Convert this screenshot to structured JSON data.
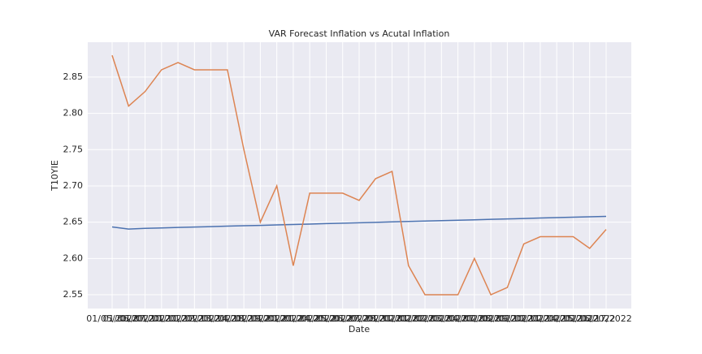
{
  "chart_data": {
    "type": "line",
    "title": "VAR Forecast Inflation vs Acutal Inflation",
    "x_label": "Date",
    "y_label": "T10YIE",
    "categories": [
      "01/05/2022",
      "01/06/2022",
      "01/07/2022",
      "01/10/2022",
      "01/11/2022",
      "01/12/2022",
      "01/13/2022",
      "01/14/2022",
      "01/18/2022",
      "01/19/2022",
      "01/20/2022",
      "01/21/2022",
      "01/24/2022",
      "01/25/2022",
      "01/26/2022",
      "01/27/2022",
      "01/28/2022",
      "01/31/2022",
      "02/01/2022",
      "02/02/2022",
      "02/03/2022",
      "02/04/2022",
      "02/07/2022",
      "02/08/2022",
      "02/09/2022",
      "02/10/2022",
      "02/11/2022",
      "02/14/2022",
      "02/15/2022",
      "02/16/2022",
      "02/17/2022"
    ],
    "series": [
      {
        "color": "#4c72b0",
        "values": [
          2.6435,
          2.6405,
          2.6415,
          2.6421,
          2.6427,
          2.6433,
          2.6439,
          2.6445,
          2.6451,
          2.6456,
          2.6462,
          2.6468,
          2.6474,
          2.648,
          2.6486,
          2.6492,
          2.6498,
          2.6504,
          2.651,
          2.6516,
          2.6521,
          2.6527,
          2.6533,
          2.6539,
          2.6545,
          2.6551,
          2.6557,
          2.6563,
          2.6569,
          2.6575,
          2.658
        ]
      },
      {
        "color": "#dd8452",
        "values": [
          2.88,
          2.81,
          2.83,
          2.86,
          2.87,
          2.86,
          2.86,
          2.86,
          2.75,
          2.65,
          2.7,
          2.59,
          2.69,
          2.69,
          2.69,
          2.68,
          2.71,
          2.72,
          2.59,
          2.55,
          2.55,
          2.55,
          2.6,
          2.55,
          2.56,
          2.62,
          2.63,
          2.63,
          2.63,
          2.614,
          2.64
        ]
      }
    ],
    "ylim": [
      2.531,
      2.898
    ],
    "yticks": [
      2.55,
      {
        "value": 2.6,
        "label": "2.60"
      },
      2.65,
      {
        "value": 2.7,
        "label": "2.70"
      },
      2.75,
      {
        "value": 2.8,
        "label": "2.80"
      },
      2.85
    ],
    "grid": true
  }
}
